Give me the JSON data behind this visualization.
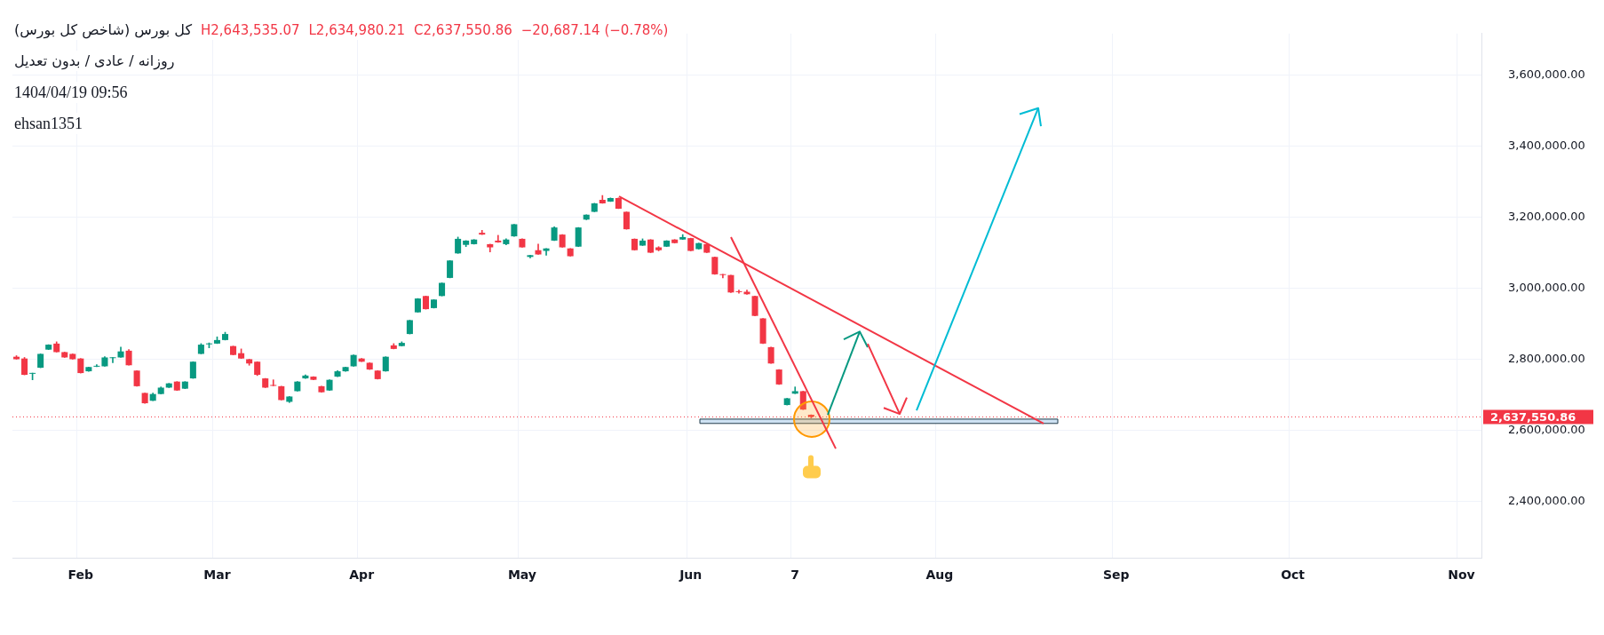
{
  "chart_data": {
    "type": "candlestick",
    "title": "کل بورس (شاخص کل بورس)",
    "subtitle": "روزانه / عادی / بدون تعدیل",
    "annotations": [
      "H2,643,535.07",
      "L2,634,980.21",
      "C2,637,550.86",
      "−20,687.14 (−0.78%)",
      "1404/04/19 09:56",
      "ehsan1351"
    ],
    "categories": [
      null,
      null,
      null,
      null,
      null,
      null,
      null,
      null,
      "Feb",
      null,
      null,
      null,
      null,
      null,
      null,
      null,
      null,
      null,
      null,
      null,
      null,
      null,
      null,
      null,
      null,
      "Mar",
      null,
      null,
      null,
      null,
      null,
      null,
      null,
      null,
      null,
      null,
      null,
      null,
      null,
      null,
      null,
      null,
      null,
      "Apr",
      null,
      null,
      null,
      null,
      null,
      null,
      null,
      null,
      null,
      null,
      null,
      null,
      null,
      null,
      null,
      null,
      null,
      null,
      null,
      "May",
      null,
      null,
      null,
      null,
      null,
      null,
      null,
      null,
      null,
      null,
      null,
      null,
      null,
      null,
      null,
      null,
      null,
      null,
      null,
      null,
      "Jun",
      null,
      null,
      null,
      null,
      null,
      null,
      null,
      null,
      null,
      null,
      null,
      null,
      "7",
      null,
      null,
      null,
      null,
      null,
      null,
      null,
      null,
      null,
      null,
      null,
      null,
      null,
      null,
      null,
      null,
      null,
      "Aug",
      null,
      null,
      null,
      null,
      null,
      null,
      null,
      null,
      null,
      null,
      null,
      null,
      null,
      null,
      null,
      null,
      null,
      null,
      null,
      null,
      null,
      "Sep",
      null,
      null,
      null,
      null,
      null,
      null,
      null,
      null,
      null,
      null,
      null,
      null,
      null,
      null,
      null,
      null,
      null,
      null,
      null,
      null,
      null,
      "Oct",
      null,
      null,
      null,
      null,
      null,
      null,
      null,
      null,
      null,
      null,
      null,
      null,
      null,
      null,
      null,
      null,
      null,
      null,
      null,
      null,
      "Nov",
      null,
      null
    ],
    "ohlc": [
      [
        2807000,
        2810000,
        2800000,
        2800000
      ],
      [
        2802000,
        2805000,
        2756000,
        2756000
      ],
      [
        2759000,
        2761000,
        2742000,
        2761000
      ],
      [
        2776000,
        2815000,
        2776000,
        2815000
      ],
      [
        2827000,
        2841000,
        2827000,
        2841000
      ],
      [
        2844000,
        2849000,
        2820000,
        2820000
      ],
      [
        2820000,
        2820000,
        2805000,
        2805000
      ],
      [
        2815000,
        2815000,
        2800000,
        2800000
      ],
      [
        2802000,
        2802000,
        2761000,
        2761000
      ],
      [
        2766000,
        2778000,
        2766000,
        2778000
      ],
      [
        2779000,
        2785000,
        2779000,
        2780000
      ],
      [
        2780000,
        2807000,
        2780000,
        2805000
      ],
      [
        2803000,
        2805000,
        2790000,
        2805000
      ],
      [
        2805000,
        2834000,
        2805000,
        2822000
      ],
      [
        2824000,
        2827000,
        2783000,
        2783000
      ],
      [
        2768000,
        2768000,
        2724000,
        2724000
      ],
      [
        2705000,
        2705000,
        2676000,
        2676000
      ],
      [
        2683000,
        2705000,
        2683000,
        2702000
      ],
      [
        2702000,
        2722000,
        2702000,
        2720000
      ],
      [
        2720000,
        2732000,
        2720000,
        2732000
      ],
      [
        2737000,
        2737000,
        2712000,
        2712000
      ],
      [
        2717000,
        2737000,
        2717000,
        2737000
      ],
      [
        2746000,
        2793000,
        2746000,
        2793000
      ],
      [
        2815000,
        2844000,
        2815000,
        2841000
      ],
      [
        2842000,
        2846000,
        2832000,
        2844000
      ],
      [
        2844000,
        2863000,
        2844000,
        2854000
      ],
      [
        2854000,
        2876000,
        2854000,
        2871000
      ],
      [
        2837000,
        2837000,
        2812000,
        2812000
      ],
      [
        2817000,
        2829000,
        2802000,
        2802000
      ],
      [
        2800000,
        2800000,
        2783000,
        2788000
      ],
      [
        2793000,
        2793000,
        2754000,
        2756000
      ],
      [
        2746000,
        2746000,
        2720000,
        2720000
      ],
      [
        2727000,
        2742000,
        2725000,
        2725000
      ],
      [
        2724000,
        2724000,
        2685000,
        2685000
      ],
      [
        2680000,
        2695000,
        2678000,
        2695000
      ],
      [
        2710000,
        2737000,
        2710000,
        2737000
      ],
      [
        2746000,
        2756000,
        2746000,
        2754000
      ],
      [
        2751000,
        2751000,
        2742000,
        2742000
      ],
      [
        2724000,
        2724000,
        2707000,
        2707000
      ],
      [
        2712000,
        2742000,
        2712000,
        2742000
      ],
      [
        2751000,
        2768000,
        2751000,
        2766000
      ],
      [
        2766000,
        2778000,
        2766000,
        2778000
      ],
      [
        2780000,
        2812000,
        2780000,
        2812000
      ],
      [
        2802000,
        2802000,
        2793000,
        2793000
      ],
      [
        2790000,
        2790000,
        2771000,
        2771000
      ],
      [
        2768000,
        2768000,
        2744000,
        2744000
      ],
      [
        2766000,
        2807000,
        2766000,
        2807000
      ],
      [
        2839000,
        2844000,
        2829000,
        2829000
      ],
      [
        2837000,
        2849000,
        2837000,
        2846000
      ],
      [
        2871000,
        2910000,
        2871000,
        2910000
      ],
      [
        2932000,
        2971000,
        2932000,
        2971000
      ],
      [
        2978000,
        2978000,
        2941000,
        2941000
      ],
      [
        2944000,
        2968000,
        2944000,
        2968000
      ],
      [
        2978000,
        3015000,
        2978000,
        3015000
      ],
      [
        3029000,
        3078000,
        3029000,
        3078000
      ],
      [
        3098000,
        3144000,
        3098000,
        3139000
      ],
      [
        3122000,
        3134000,
        3117000,
        3134000
      ],
      [
        3124000,
        3137000,
        3124000,
        3137000
      ],
      [
        3156000,
        3163000,
        3151000,
        3151000
      ],
      [
        3124000,
        3124000,
        3102000,
        3115000
      ],
      [
        3134000,
        3149000,
        3129000,
        3129000
      ],
      [
        3124000,
        3139000,
        3122000,
        3137000
      ],
      [
        3146000,
        3180000,
        3146000,
        3180000
      ],
      [
        3139000,
        3139000,
        3115000,
        3115000
      ],
      [
        3088000,
        3093000,
        3085000,
        3093000
      ],
      [
        3107000,
        3124000,
        3095000,
        3095000
      ],
      [
        3105000,
        3112000,
        3093000,
        3112000
      ],
      [
        3134000,
        3173000,
        3134000,
        3171000
      ],
      [
        3151000,
        3151000,
        3115000,
        3115000
      ],
      [
        3112000,
        3112000,
        3090000,
        3090000
      ],
      [
        3117000,
        3171000,
        3117000,
        3171000
      ],
      [
        3193000,
        3207000,
        3193000,
        3207000
      ],
      [
        3215000,
        3239000,
        3215000,
        3239000
      ],
      [
        3249000,
        3261000,
        3239000,
        3239000
      ],
      [
        3244000,
        3254000,
        3244000,
        3254000
      ],
      [
        3254000,
        3254000,
        3224000,
        3224000
      ],
      [
        3215000,
        3215000,
        3166000,
        3166000
      ],
      [
        3139000,
        3139000,
        3107000,
        3107000
      ],
      [
        3120000,
        3139000,
        3120000,
        3134000
      ],
      [
        3137000,
        3137000,
        3100000,
        3100000
      ],
      [
        3115000,
        3117000,
        3105000,
        3107000
      ],
      [
        3117000,
        3134000,
        3117000,
        3134000
      ],
      [
        3137000,
        3137000,
        3127000,
        3127000
      ],
      [
        3137000,
        3151000,
        3137000,
        3144000
      ],
      [
        3141000,
        3141000,
        3105000,
        3105000
      ],
      [
        3110000,
        3127000,
        3110000,
        3127000
      ],
      [
        3124000,
        3124000,
        3100000,
        3100000
      ],
      [
        3088000,
        3088000,
        3039000,
        3039000
      ],
      [
        3039000,
        3039000,
        3029000,
        3037000
      ],
      [
        3037000,
        3037000,
        2988000,
        2988000
      ],
      [
        2991000,
        2995000,
        2986000,
        2989000
      ],
      [
        2990000,
        2995000,
        2983000,
        2983000
      ],
      [
        2978000,
        2978000,
        2922000,
        2922000
      ],
      [
        2915000,
        2915000,
        2844000,
        2844000
      ],
      [
        2834000,
        2834000,
        2788000,
        2788000
      ],
      [
        2771000,
        2771000,
        2729000,
        2729000
      ],
      [
        2671000,
        2690000,
        2671000,
        2690000
      ],
      [
        2703000,
        2722000,
        2703000,
        2710000
      ],
      [
        2710000,
        2710000,
        2658238.0,
        2658238.0
      ],
      [
        2643490,
        2643535.07,
        2634980.21,
        2637550.86
      ],
      null,
      null,
      null,
      null,
      null,
      null,
      null,
      null,
      null,
      null,
      null,
      null,
      null,
      null,
      null,
      null,
      null,
      null,
      null,
      null,
      null,
      null,
      null,
      null,
      null,
      null,
      null,
      null,
      null,
      null,
      null,
      null,
      null,
      null,
      null,
      null,
      null,
      null,
      null,
      null,
      null,
      null,
      null,
      null,
      null,
      null,
      null,
      null,
      null,
      null,
      null,
      null,
      null,
      null,
      null,
      null,
      null,
      null,
      null,
      null,
      null,
      null,
      null,
      null,
      null,
      null,
      null,
      null,
      null,
      null,
      null,
      null,
      null,
      null,
      null,
      null,
      null,
      null,
      null,
      null,
      null,
      null,
      null
    ],
    "colors": [
      "#f23645",
      "#f23645",
      "#089981",
      "#089981",
      "#089981",
      "#f23645",
      "#f23645",
      "#f23645",
      "#f23645",
      "#089981",
      "#089981",
      "#089981",
      "#089981",
      "#089981",
      "#f23645",
      "#f23645",
      "#f23645",
      "#089981",
      "#089981",
      "#089981",
      "#f23645",
      "#089981",
      "#089981",
      "#089981",
      "#089981",
      "#089981",
      "#089981",
      "#f23645",
      "#f23645",
      "#f23645",
      "#f23645",
      "#f23645",
      "#f23645",
      "#f23645",
      "#089981",
      "#089981",
      "#089981",
      "#f23645",
      "#f23645",
      "#089981",
      "#089981",
      "#089981",
      "#089981",
      "#f23645",
      "#f23645",
      "#f23645",
      "#089981",
      "#f23645",
      "#089981",
      "#089981",
      "#089981",
      "#f23645",
      "#089981",
      "#089981",
      "#089981",
      "#089981",
      "#089981",
      "#089981",
      "#f23645",
      "#f23645",
      "#f23645",
      "#089981",
      "#089981",
      "#f23645",
      "#089981",
      "#f23645",
      "#089981",
      "#089981",
      "#f23645",
      "#f23645",
      "#089981",
      "#089981",
      "#089981",
      "#f23645",
      "#089981",
      "#f23645",
      "#f23645",
      "#f23645",
      "#089981",
      "#f23645",
      "#f23645",
      "#089981",
      "#f23645",
      "#089981",
      "#f23645",
      "#089981",
      "#f23645",
      "#f23645",
      "#f23645",
      "#f23645",
      "#f23645",
      "#f23645",
      "#f23645",
      "#f23645",
      "#f23645",
      "#f23645",
      "#089981",
      "#089981",
      "#f23645",
      "#f23645",
      null,
      null,
      null,
      null,
      null,
      null,
      null,
      null,
      null,
      null,
      null,
      null,
      null,
      null,
      null,
      null,
      null,
      null,
      null,
      null,
      null,
      null,
      null,
      null,
      null,
      null,
      null,
      null,
      null,
      null,
      null,
      null,
      null,
      null,
      null,
      null,
      null,
      null,
      null,
      null,
      null,
      null,
      null,
      null,
      null,
      null,
      null,
      null,
      null,
      null,
      null,
      null,
      null,
      null,
      null,
      null,
      null,
      null,
      null,
      null,
      null,
      null,
      null,
      null,
      null,
      null,
      null,
      null,
      null,
      null,
      null,
      null,
      null,
      null,
      null,
      null,
      null,
      null,
      null,
      null,
      null,
      null,
      null
    ],
    "ylim": [
      2241000,
      3717000
    ],
    "yticks": [
      {
        "value": 2400000,
        "label": "2,400,000.00"
      },
      {
        "value": 2600000,
        "label": "2,600,000.00"
      },
      {
        "value": 2800000,
        "label": "2,800,000.00"
      },
      {
        "value": 3000000,
        "label": "3,000,000.00"
      },
      {
        "value": 3200000,
        "label": "3,200,000.00"
      },
      {
        "value": 3400000,
        "label": "3,400,000.00"
      },
      {
        "value": 3600000,
        "label": "3,600,000.00"
      }
    ],
    "grid": true,
    "ref_lines": [
      {
        "axis": "y",
        "value": 2637550.86,
        "label": "2,637,550.86",
        "color": "#f23645",
        "line_style": "dotted"
      }
    ]
  }
}
